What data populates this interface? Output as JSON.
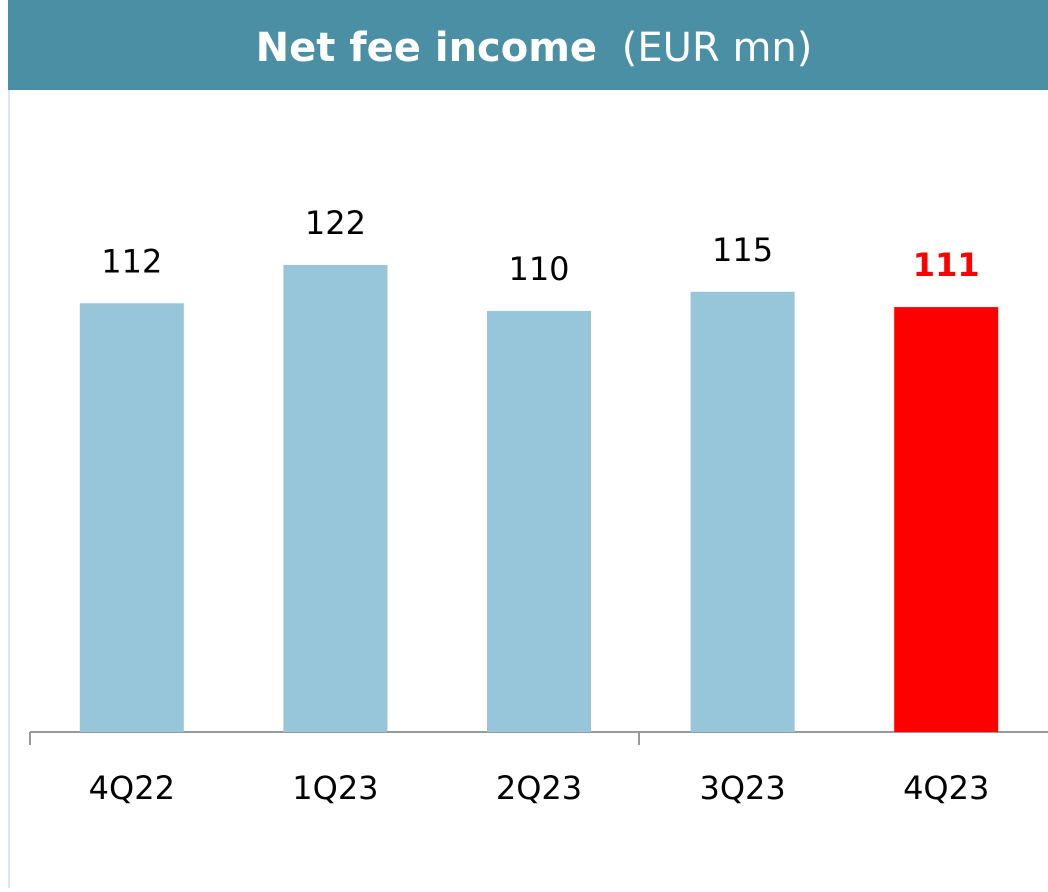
{
  "chart_data": {
    "type": "bar",
    "title": "Net fee income",
    "unit": "(EUR mn)",
    "categories": [
      "4Q22",
      "1Q23",
      "2Q23",
      "3Q23",
      "4Q23"
    ],
    "values": [
      112,
      122,
      110,
      115,
      111
    ],
    "colors": [
      "#97c5da",
      "#97c5da",
      "#97c5da",
      "#97c5da",
      "#ff0000"
    ],
    "label_colors": [
      "#000000",
      "#000000",
      "#000000",
      "#000000",
      "#ff0000"
    ]
  }
}
